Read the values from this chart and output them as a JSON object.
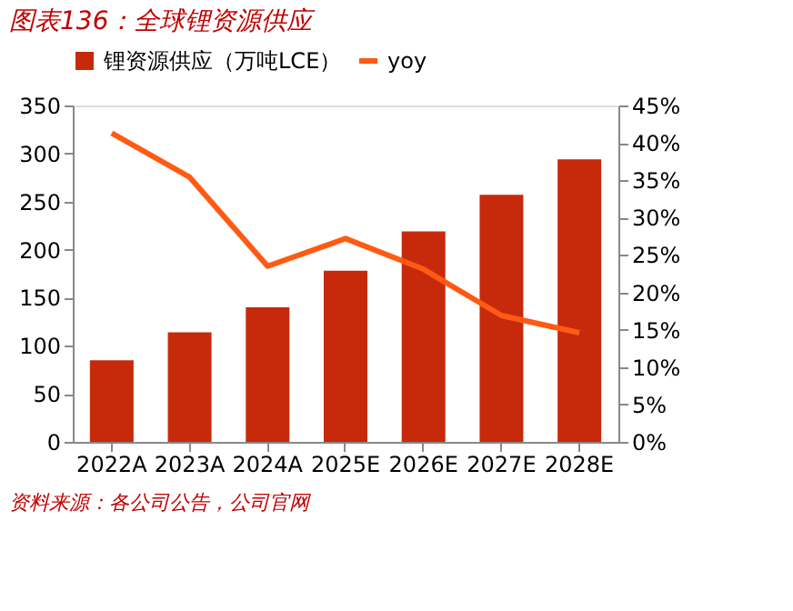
{
  "chart_data": {
    "type": "bar",
    "title": "图表136：全球锂资源供应",
    "categories": [
      "2022A",
      "2023A",
      "2024A",
      "2025E",
      "2026E",
      "2027E",
      "2028E"
    ],
    "series": [
      {
        "name": "锂资源供应（万吨LCE）",
        "color": "#c62a0b",
        "values": [
          85,
          114,
          140,
          178,
          219,
          257,
          294
        ]
      },
      {
        "name": "yoy",
        "type": "line",
        "axis": "y2",
        "color": "#ff5a14",
        "values": [
          41.3,
          35.4,
          23.5,
          27.2,
          23.1,
          16.9,
          14.6
        ]
      }
    ],
    "ylim": [
      0,
      350
    ],
    "yticks": [
      0,
      50,
      100,
      150,
      200,
      250,
      300,
      350
    ],
    "y2lim": [
      0,
      45
    ],
    "y2ticks": [
      {
        "value": 0,
        "label": "0%"
      },
      {
        "value": 5,
        "label": "5%"
      },
      {
        "value": 10,
        "label": "10%"
      },
      {
        "value": 15,
        "label": "15%"
      },
      {
        "value": 20,
        "label": "20%"
      },
      {
        "value": 25,
        "label": "25%"
      },
      {
        "value": 30,
        "label": "30%"
      },
      {
        "value": 35,
        "label": "35%"
      },
      {
        "value": 40,
        "label": "40%"
      },
      {
        "value": 45,
        "label": "45%"
      }
    ],
    "grid": false,
    "legend": "top",
    "annotations": [
      "资料来源：各公司公告，公司官网"
    ]
  }
}
